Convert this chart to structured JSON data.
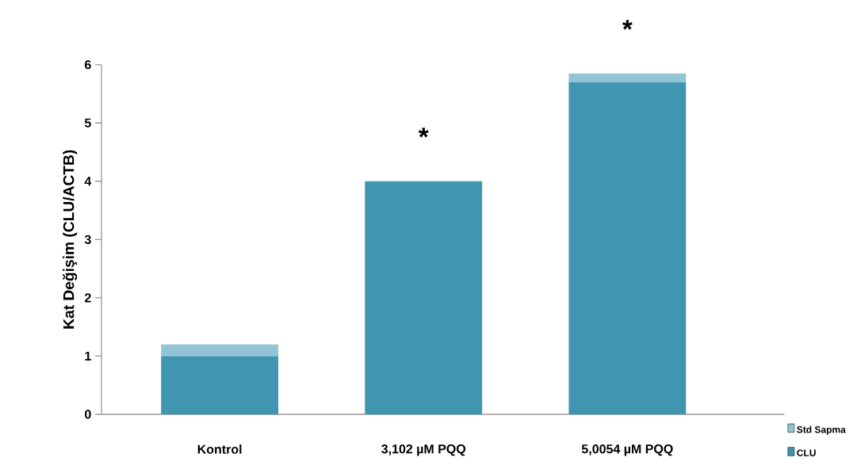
{
  "chart_data": {
    "type": "bar",
    "stacked": true,
    "ylabel": "Kat Değişim (CLU/ACTB)",
    "categories": [
      "Kontrol",
      "3,102  µM PQQ",
      "5,0054 µM PQQ"
    ],
    "series": [
      {
        "name": "CLU",
        "color": "#4096b0",
        "values": [
          1.0,
          4.0,
          5.7
        ]
      },
      {
        "name": "Std Sapma",
        "color": "#92c4d6",
        "values": [
          0.2,
          0,
          0.15
        ]
      }
    ],
    "ylim": [
      0,
      6
    ],
    "yticks": [
      0,
      1,
      2,
      3,
      4,
      5,
      6
    ],
    "legend": "bottom right",
    "grid": false,
    "annotations": [
      {
        "text": "*",
        "x": "3,102  µM PQQ",
        "y": 4.0
      },
      {
        "text": "*",
        "x": "5,0054 µM PQQ",
        "y": 5.85
      }
    ]
  }
}
